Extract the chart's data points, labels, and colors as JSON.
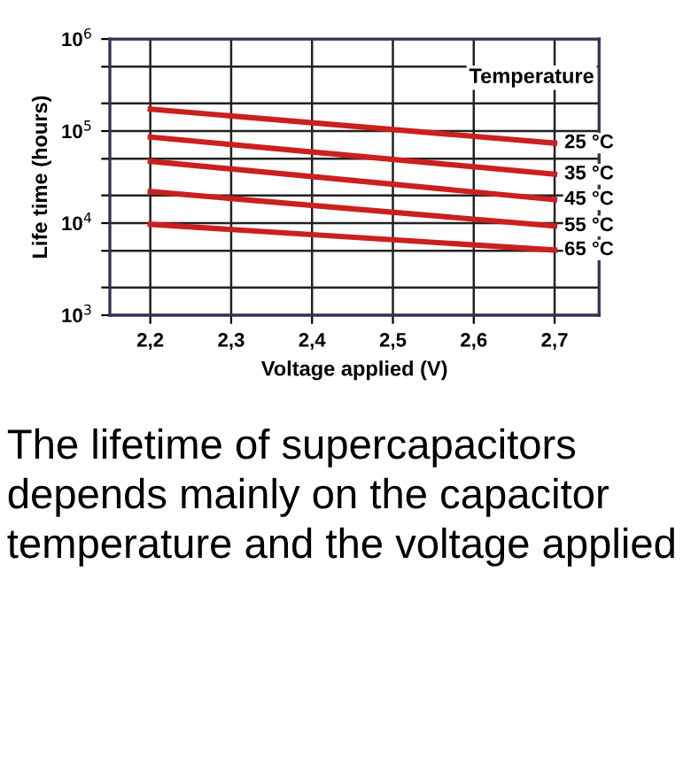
{
  "chart_data": {
    "type": "line",
    "xlabel": "Voltage applied (V)",
    "ylabel": "Life time (hours)",
    "legend_title": "Temperature",
    "x": [
      2.2,
      2.7
    ],
    "series": [
      {
        "name": "25 °C",
        "color": "#cc1f1f",
        "values": [
          173000,
          74000
        ]
      },
      {
        "name": "35 °C",
        "color": "#cc1f1f",
        "values": [
          86000,
          34000
        ]
      },
      {
        "name": "45 °C",
        "color": "#cc1f1f",
        "values": [
          47000,
          18000
        ]
      },
      {
        "name": "55 °C",
        "color": "#cc1f1f",
        "values": [
          22000,
          9300
        ]
      },
      {
        "name": "65 °C",
        "color": "#cc1f1f",
        "values": [
          9700,
          5100
        ]
      }
    ],
    "log": "y",
    "xlim": [
      2.15,
      2.755
    ],
    "ylim": [
      1000,
      1000000
    ],
    "xticks": [
      {
        "value": 2.2,
        "label": "2,2"
      },
      {
        "value": 2.3,
        "label": "2,3"
      },
      {
        "value": 2.4,
        "label": "2,4"
      },
      {
        "value": 2.5,
        "label": "2,5"
      },
      {
        "value": 2.6,
        "label": "2,6"
      },
      {
        "value": 2.7,
        "label": "2,7"
      }
    ],
    "yticks": [
      {
        "value": 1000,
        "label": "10$^{3}$"
      },
      {
        "value": 2000,
        "label": null
      },
      {
        "value": 5000,
        "label": null
      },
      {
        "value": 10000,
        "label": "10$^{4}$"
      },
      {
        "value": 20000,
        "label": null
      },
      {
        "value": 50000,
        "label": null
      },
      {
        "value": 100000,
        "label": "10$^{5}$"
      },
      {
        "value": 200000,
        "label": null
      },
      {
        "value": 500000,
        "label": null
      },
      {
        "value": 1000000,
        "label": "10$^{6}$"
      }
    ],
    "grid": true,
    "line_style": "solid",
    "marker": "none",
    "annotations": [
      "The lifetime of supercapacitors depends mainly on the capacitor temperature and the voltage applied"
    ]
  }
}
